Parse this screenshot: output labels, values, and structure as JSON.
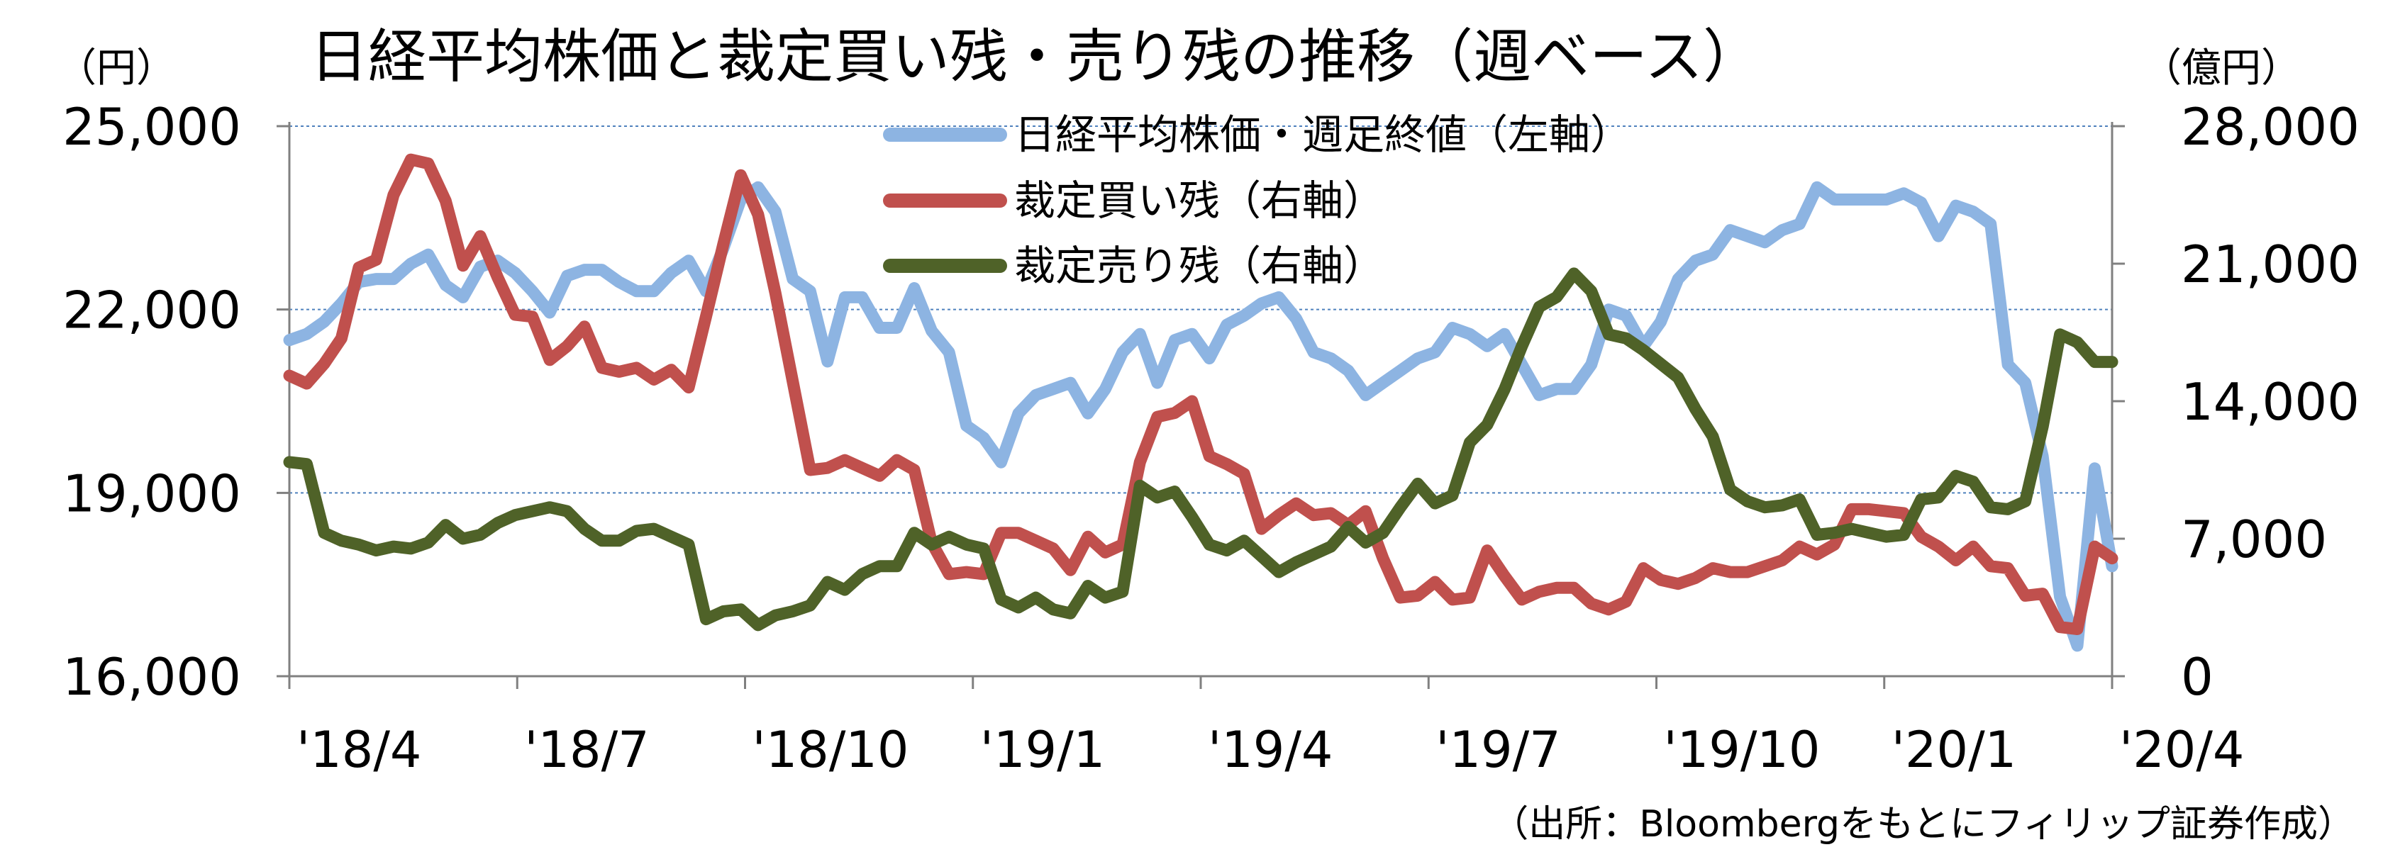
{
  "chart_data": {
    "type": "line",
    "title": "日経平均株価と裁定買い残・売り残の推移（週ベース）",
    "left_unit": "（円）",
    "right_unit": "（億円）",
    "source": "（出所：Bloombergをもとにフィリップ証券作成）",
    "grid": true,
    "legend_position": "top-center",
    "x_tick_labels": [
      "'18/4",
      "'18/7",
      "'18/10",
      "'19/1",
      "'19/4",
      "'19/7",
      "'19/10",
      "'20/1",
      "'20/4"
    ],
    "left_axis": {
      "min": 16000,
      "max": 25000,
      "ticks": [
        "16,000",
        "19,000",
        "22,000",
        "25,000"
      ]
    },
    "right_axis": {
      "min": 0,
      "max": 28000,
      "ticks": [
        "0",
        "7,000",
        "14,000",
        "21,000",
        "28,000"
      ]
    },
    "series": [
      {
        "name": "日経平均株価・週足終値（左軸）",
        "axis": "left",
        "color": "#8DB4E2",
        "values": [
          21500,
          21600,
          21800,
          22100,
          22450,
          22500,
          22500,
          22750,
          22900,
          22400,
          22200,
          22700,
          22800,
          22600,
          22300,
          21950,
          22550,
          22650,
          22650,
          22450,
          22300,
          22300,
          22600,
          22800,
          22300,
          23000,
          23800,
          24000,
          23600,
          22500,
          22300,
          21150,
          22200,
          22200,
          21700,
          21700,
          22350,
          21650,
          21300,
          20100,
          19900,
          19500,
          20300,
          20600,
          20700,
          20800,
          20300,
          20700,
          21300,
          21600,
          20800,
          21500,
          21600,
          21200,
          21750,
          21900,
          22100,
          22200,
          21850,
          21300,
          21200,
          21000,
          20600,
          20800,
          21000,
          21200,
          21300,
          21700,
          21600,
          21400,
          21600,
          21100,
          20600,
          20700,
          20700,
          21100,
          22000,
          21900,
          21400,
          21800,
          22500,
          22800,
          22900,
          23300,
          23200,
          23100,
          23300,
          23400,
          24000,
          23800,
          23800,
          23800,
          23800,
          23900,
          23750,
          23200,
          23700,
          23600,
          23400,
          21100,
          20800,
          19600,
          17300,
          16500,
          19400,
          17800
        ]
      },
      {
        "name": "裁定買い残（右軸）",
        "axis": "right",
        "color": "#C0504D",
        "values": [
          15300,
          14900,
          15900,
          17200,
          20800,
          21200,
          24500,
          26300,
          26100,
          24200,
          20900,
          22400,
          20300,
          18400,
          18300,
          16100,
          16800,
          17800,
          15700,
          15500,
          15700,
          15100,
          15600,
          14700,
          18300,
          22000,
          25500,
          23500,
          19500,
          15000,
          10500,
          10600,
          11000,
          10600,
          10200,
          11000,
          10500,
          6800,
          5200,
          5300,
          5200,
          7300,
          7300,
          6900,
          6500,
          5400,
          7100,
          6300,
          6700,
          10900,
          13200,
          13400,
          14000,
          11200,
          10800,
          10300,
          7500,
          8200,
          8800,
          8200,
          8300,
          7700,
          8400,
          6000,
          4000,
          4100,
          4800,
          3900,
          4000,
          6400,
          5100,
          3900,
          4300,
          4500,
          4500,
          3700,
          3400,
          3800,
          5500,
          4900,
          4700,
          5000,
          5500,
          5300,
          5300,
          5600,
          5900,
          6600,
          6200,
          6700,
          8500,
          8500,
          8400,
          8300,
          7100,
          6600,
          5900,
          6600,
          5600,
          5500,
          4100,
          4200,
          2500,
          2400,
          6600,
          6000
        ]
      },
      {
        "name": "裁定売り残（右軸）",
        "axis": "right",
        "color": "#4F6228",
        "values": [
          10900,
          10800,
          7300,
          6900,
          6700,
          6400,
          6600,
          6500,
          6800,
          7700,
          7000,
          7200,
          7800,
          8200,
          8400,
          8600,
          8400,
          7500,
          6900,
          6900,
          7400,
          7500,
          7100,
          6700,
          2900,
          3300,
          3400,
          2600,
          3100,
          3300,
          3600,
          4800,
          4400,
          5200,
          5600,
          5600,
          7300,
          6700,
          7100,
          6700,
          6500,
          3900,
          3500,
          4000,
          3400,
          3200,
          4600,
          4000,
          4300,
          9700,
          9100,
          9400,
          8100,
          6700,
          6400,
          6900,
          6100,
          5300,
          5800,
          6200,
          6600,
          7600,
          6800,
          7300,
          8600,
          9800,
          8800,
          9200,
          11900,
          12800,
          14600,
          16800,
          18800,
          19300,
          20500,
          19600,
          17400,
          17200,
          16600,
          15900,
          15200,
          13600,
          12200,
          9500,
          8900,
          8600,
          8700,
          9000,
          7200,
          7300,
          7500,
          7300,
          7100,
          7200,
          9000,
          9100,
          10200,
          9900,
          8600,
          8500,
          8900,
          12700,
          17400,
          17000,
          16000,
          16000
        ]
      }
    ]
  }
}
